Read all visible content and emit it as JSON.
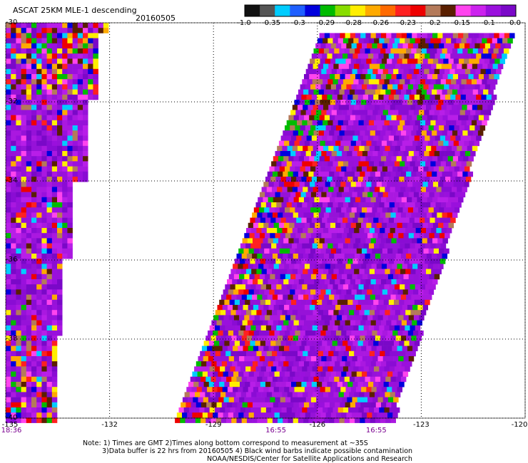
{
  "title": "ASCAT 25KM MLE-1 descending",
  "date": "20160505",
  "colorbar": {
    "labels": [
      "-1.0",
      "-0.35",
      "-0.3",
      "-0.29",
      "-0.28",
      "-0.26",
      "-0.23",
      "-0.2",
      "-0.15",
      "-0.1",
      "0.0"
    ],
    "colors": [
      "#111111",
      "#555555",
      "#00ccff",
      "#1f5fff",
      "#0000dd",
      "#00bb00",
      "#88dd00",
      "#ffee00",
      "#ffaa00",
      "#ff6a00",
      "#ff2020",
      "#ee0000",
      "#b47a5a",
      "#5a1f00",
      "#ff44ee",
      "#cc22ee",
      "#9a10dd",
      "#7a08c8"
    ]
  },
  "map": {
    "lat_labels": [
      "-30",
      "-32",
      "-34",
      "-36",
      "-38",
      "-40"
    ],
    "lon_labels": [
      "-135",
      "-132",
      "-129",
      "-126",
      "-123",
      "-120"
    ],
    "lat_range": [
      -40,
      -30
    ],
    "lon_range": [
      -135,
      -120
    ],
    "time_labels": [
      {
        "lon": -135,
        "text": "18:36"
      },
      {
        "lon": -127.2,
        "text": "16:55"
      },
      {
        "lon": -124.3,
        "text": "16:55"
      }
    ],
    "palette": {
      "common": [
        "#9a10dd",
        "#8a0cd4",
        "#aa18e0",
        "#7a08c8",
        "#b81ee8",
        "#9612d8"
      ],
      "rare": [
        "#ff2020",
        "#ff44ee",
        "#ffee00",
        "#ffaa00",
        "#b47a5a",
        "#5a1f00",
        "#0000dd",
        "#00bb00",
        "#00ccff",
        "#ee0000"
      ]
    }
  },
  "notes": [
    "Note: 1) Times are GMT 2)Times along bottom correspond to measurement at ~35S",
    "3)Data buffer is 22 hrs from 20160505 4) Black wind barbs indicate possible contamination",
    "NOAA/NESDIS/Center for Satellite Applications and Research"
  ]
}
